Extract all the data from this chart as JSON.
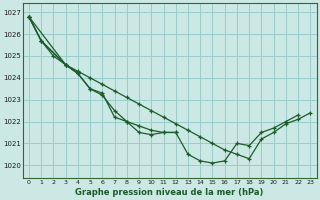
{
  "title": "Graphe pression niveau de la mer (hPa)",
  "bg_color": "#cce8e4",
  "grid_color": "#99cccc",
  "line_color": "#1a5c2a",
  "xlim": [
    -0.5,
    23.5
  ],
  "ylim": [
    1019.4,
    1027.4
  ],
  "yticks": [
    1020,
    1021,
    1022,
    1023,
    1024,
    1025,
    1026,
    1027
  ],
  "xticks": [
    0,
    1,
    2,
    3,
    4,
    5,
    6,
    7,
    8,
    9,
    10,
    11,
    12,
    13,
    14,
    15,
    16,
    17,
    18,
    19,
    20,
    21,
    22,
    23
  ],
  "series": [
    {
      "x": [
        0,
        1,
        2,
        3,
        4
      ],
      "y": [
        1026.8,
        1025.7,
        1025.0,
        1024.6,
        1024.2
      ]
    },
    {
      "x": [
        0,
        1,
        3,
        4,
        5,
        6,
        7,
        8,
        9,
        10,
        11,
        12
      ],
      "y": [
        1026.8,
        1025.7,
        1024.6,
        1024.2,
        1023.5,
        1023.2,
        1022.5,
        1022.0,
        1021.8,
        1021.6,
        1021.5,
        1021.5
      ]
    },
    {
      "x": [
        0,
        1,
        3,
        4,
        5,
        6,
        7,
        8,
        9,
        10,
        11,
        12,
        13,
        14,
        15,
        16,
        17,
        18,
        19,
        20,
        21,
        22
      ],
      "y": [
        1026.8,
        1025.7,
        1024.6,
        1024.2,
        1023.5,
        1023.3,
        1022.2,
        1022.0,
        1021.5,
        1021.4,
        1021.5,
        1021.5,
        1020.5,
        1020.2,
        1020.1,
        1020.2,
        1021.0,
        1020.9,
        1021.5,
        1021.7,
        1022.0,
        1022.3
      ]
    },
    {
      "x": [
        0,
        3,
        4,
        5,
        6,
        7,
        8,
        9,
        10,
        11,
        12,
        13,
        14,
        15,
        16,
        17,
        18,
        19,
        20,
        21,
        22,
        23
      ],
      "y": [
        1026.8,
        1024.6,
        1024.3,
        1024.0,
        1023.7,
        1023.4,
        1023.1,
        1022.8,
        1022.5,
        1022.2,
        1021.9,
        1021.6,
        1021.3,
        1021.0,
        1020.7,
        1020.5,
        1020.3,
        1021.2,
        1021.5,
        1021.9,
        1022.1,
        1022.4
      ]
    }
  ]
}
